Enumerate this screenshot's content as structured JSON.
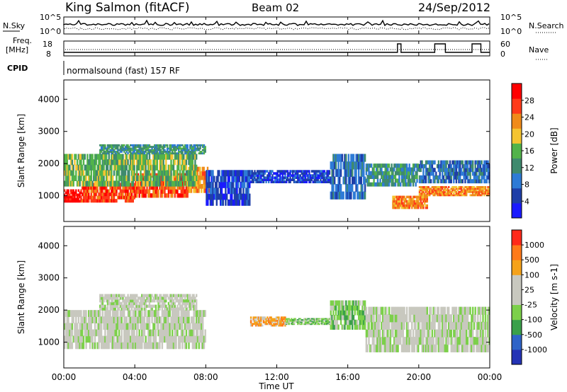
{
  "header": {
    "station": "King Salmon (fitACF)",
    "beam": "Beam 02",
    "date": "24/Sep/2012"
  },
  "aux": {
    "nsky_label": "N.Sky",
    "nsky_ticks": [
      "10^5",
      "10^0"
    ],
    "nsearch_label": "N.Search",
    "nsearch_ticks": [
      "10^5",
      "10^0"
    ],
    "freq_label_1": "Freq.",
    "freq_label_2": "[MHz]",
    "freq_ticks": [
      "18",
      "8"
    ],
    "nave_label": "Nave",
    "nave_ticks": [
      "60",
      "0"
    ],
    "cpid_label": "CPID",
    "cpid_value": "normalsound (fast) 157 RF"
  },
  "x_axis": {
    "label": "Time UT",
    "ticks": [
      "00:00",
      "04:00",
      "08:00",
      "12:00",
      "16:00",
      "20:00",
      "00:00"
    ]
  },
  "colors": {
    "power": [
      "#1a1aff",
      "#1f3fa8",
      "#2e7bd6",
      "#3f8a6e",
      "#52b34a",
      "#f5c431",
      "#f08b1a",
      "#ff3a1a",
      "#ff0000"
    ],
    "velocity": [
      "#2433b5",
      "#2f64c8",
      "#3aa04a",
      "#7cd04a",
      "#c8c8bf",
      "#c8c8bf",
      "#f5a21a",
      "#ff7a1a",
      "#ff2a1a"
    ]
  },
  "chart_data": [
    {
      "type": "heatmap",
      "name": "power",
      "ylabel": "Slant Range [km]",
      "yticks": [
        "1000",
        "2000",
        "3000",
        "4000"
      ],
      "ylim": [
        200,
        4600
      ],
      "xlim_hours": [
        0,
        24
      ],
      "colorbar_label": "Power [dB]",
      "colorbar_ticks": [
        "4",
        "8",
        "12",
        "16",
        "20",
        "24",
        "28"
      ],
      "colorbar_range": [
        0,
        32
      ],
      "bands": [
        {
          "t0": 0.0,
          "t1": 1.0,
          "r0": 800,
          "r1": 1200,
          "level": 8
        },
        {
          "t0": 1.0,
          "t1": 4.0,
          "r0": 800,
          "r1": 1400,
          "level": 7
        },
        {
          "t0": 4.0,
          "t1": 7.0,
          "r0": 950,
          "r1": 1700,
          "level": 7
        },
        {
          "t0": 7.0,
          "t1": 8.2,
          "r0": 1100,
          "r1": 1900,
          "level": 6
        },
        {
          "t0": 0.0,
          "t1": 7.5,
          "r0": 1300,
          "r1": 2300,
          "level": 4
        },
        {
          "t0": 2.0,
          "t1": 8.0,
          "r0": 2300,
          "r1": 2600,
          "level": 3
        },
        {
          "t0": 8.0,
          "t1": 10.5,
          "r0": 700,
          "r1": 1800,
          "level": 1
        },
        {
          "t0": 10.5,
          "t1": 15.0,
          "r0": 1400,
          "r1": 1800,
          "level": 1
        },
        {
          "t0": 15.0,
          "t1": 17.0,
          "r0": 900,
          "r1": 2300,
          "level": 2
        },
        {
          "t0": 17.0,
          "t1": 20.0,
          "r0": 1300,
          "r1": 2000,
          "level": 3
        },
        {
          "t0": 18.5,
          "t1": 20.5,
          "r0": 600,
          "r1": 1000,
          "level": 6
        },
        {
          "t0": 20.0,
          "t1": 24.0,
          "r0": 1000,
          "r1": 1300,
          "level": 6
        },
        {
          "t0": 20.0,
          "t1": 24.0,
          "r0": 1400,
          "r1": 2100,
          "level": 2
        }
      ]
    },
    {
      "type": "heatmap",
      "name": "velocity",
      "ylabel": "Slant Range [km]",
      "yticks": [
        "1000",
        "2000",
        "3000",
        "4000"
      ],
      "ylim": [
        200,
        4600
      ],
      "xlim_hours": [
        0,
        24
      ],
      "colorbar_label": "Velocity [m s-1]",
      "colorbar_ticks": [
        "1000",
        "500",
        "100",
        "25",
        "-25",
        "-100",
        "-500",
        "-1000"
      ],
      "colorbar_range": [
        -1200,
        1200
      ],
      "bands": [
        {
          "t0": 0.0,
          "t1": 8.0,
          "r0": 800,
          "r1": 2000,
          "level": 4
        },
        {
          "t0": 2.0,
          "t1": 7.5,
          "r0": 2000,
          "r1": 2500,
          "level": 4
        },
        {
          "t0": 10.5,
          "t1": 12.5,
          "r0": 1500,
          "r1": 1800,
          "level": 6
        },
        {
          "t0": 12.5,
          "t1": 15.0,
          "r0": 1550,
          "r1": 1750,
          "level": 3
        },
        {
          "t0": 15.0,
          "t1": 17.0,
          "r0": 1400,
          "r1": 2300,
          "level": 3
        },
        {
          "t0": 17.0,
          "t1": 24.0,
          "r0": 700,
          "r1": 2100,
          "level": 4
        }
      ]
    }
  ]
}
